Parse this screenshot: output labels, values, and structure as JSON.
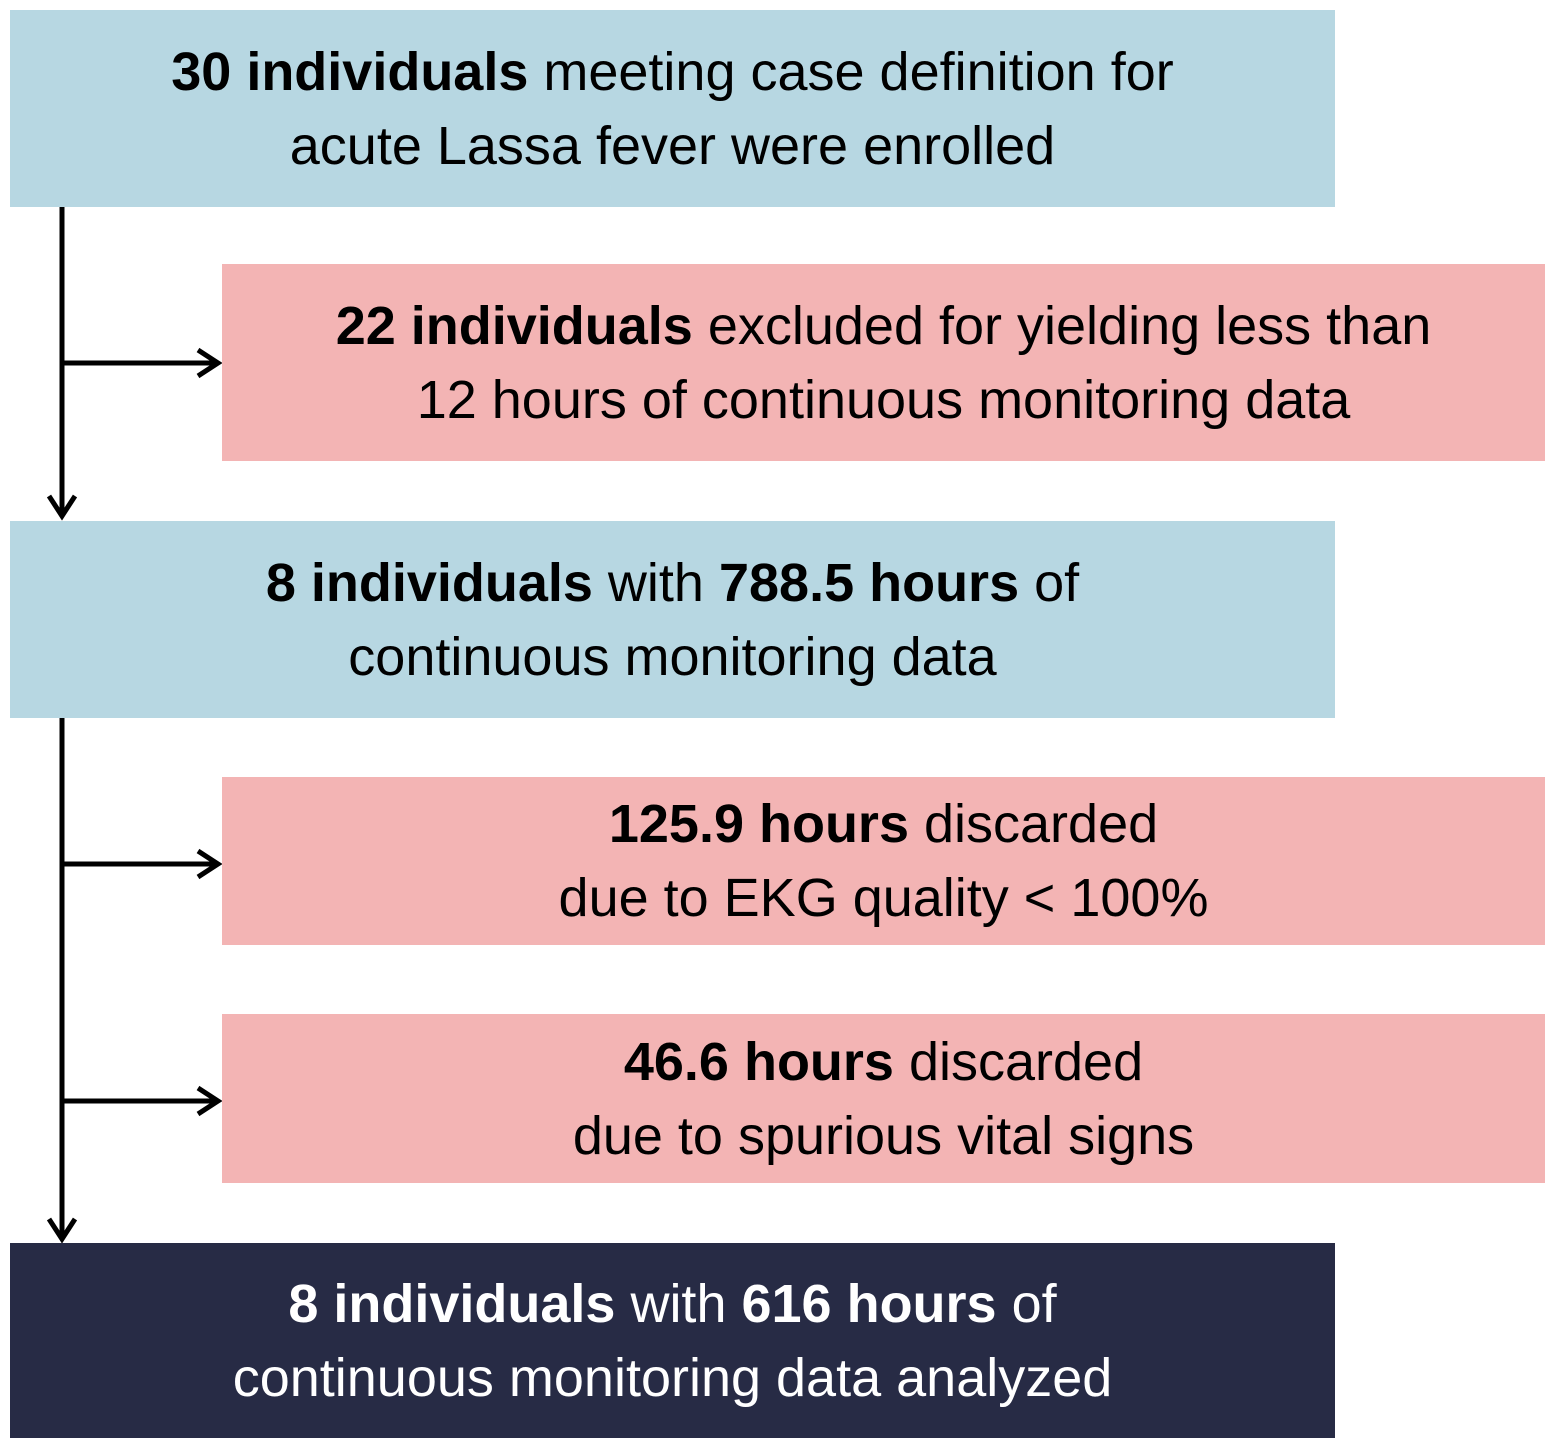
{
  "nodes": [
    {
      "lines": [
        [
          {
            "text": "30 individuals",
            "bold": true
          },
          {
            "text": " meeting case definition for",
            "bold": false
          }
        ],
        [
          {
            "text": "acute Lassa fever were enrolled",
            "bold": false
          }
        ]
      ]
    },
    {
      "lines": [
        [
          {
            "text": "22 individuals",
            "bold": true
          },
          {
            "text": " excluded for yielding less than",
            "bold": false
          }
        ],
        [
          {
            "text": "12 hours of continuous monitoring data",
            "bold": false
          }
        ]
      ]
    },
    {
      "lines": [
        [
          {
            "text": "8 individuals",
            "bold": true
          },
          {
            "text": " with ",
            "bold": false
          },
          {
            "text": "788.5 hours",
            "bold": true
          },
          {
            "text": " of",
            "bold": false
          }
        ],
        [
          {
            "text": "continuous monitoring data",
            "bold": false
          }
        ]
      ]
    },
    {
      "lines": [
        [
          {
            "text": "125.9 hours",
            "bold": true
          },
          {
            "text": " discarded",
            "bold": false
          }
        ],
        [
          {
            "text": "due to EKG quality < 100%",
            "bold": false
          }
        ]
      ]
    },
    {
      "lines": [
        [
          {
            "text": "46.6 hours",
            "bold": true
          },
          {
            "text": " discarded",
            "bold": false
          }
        ],
        [
          {
            "text": "due to spurious vital signs",
            "bold": false
          }
        ]
      ]
    },
    {
      "lines": [
        [
          {
            "text": "8 individuals",
            "bold": true
          },
          {
            "text": " with ",
            "bold": false
          },
          {
            "text": "616 hours",
            "bold": true
          },
          {
            "text": " of",
            "bold": false
          }
        ],
        [
          {
            "text": "continuous monitoring data analyzed",
            "bold": false
          }
        ]
      ]
    }
  ]
}
